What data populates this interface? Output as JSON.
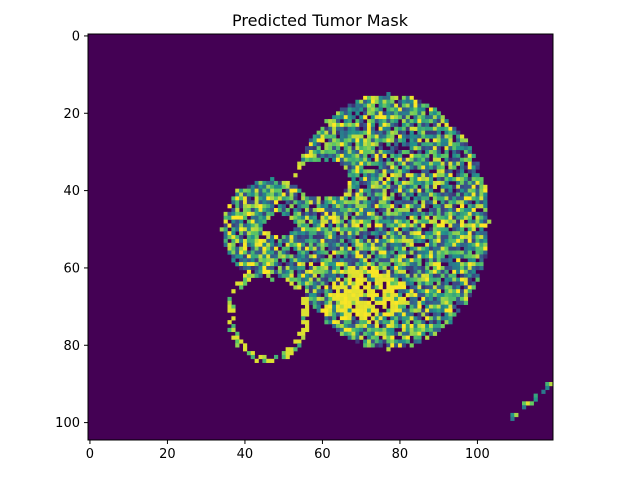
{
  "chart_data": {
    "type": "heatmap",
    "title": "Predicted Tumor Mask",
    "xlabel": "",
    "ylabel": "",
    "colormap": "viridis",
    "xlim": [
      -0.5,
      119.5
    ],
    "ylim": [
      104.5,
      -0.5
    ],
    "x_ticks": [
      0,
      20,
      40,
      60,
      80,
      100
    ],
    "y_ticks": [
      0,
      20,
      40,
      60,
      80,
      100
    ],
    "grid": false,
    "background_value": 0.0,
    "colors": {
      "background": "#440154",
      "low": "#3b528b",
      "mid": "#21918c",
      "high": "#5ec962",
      "max": "#fde725"
    },
    "regions": [
      {
        "name": "tumor-body",
        "shape": "ellipse",
        "cx": 77,
        "cy": 48,
        "rx": 26,
        "ry": 33,
        "mean_value": 0.6
      },
      {
        "name": "left-lobe",
        "shape": "ellipse",
        "cx": 47,
        "cy": 50,
        "rx": 13,
        "ry": 13,
        "mean_value": 0.55
      },
      {
        "name": "bright-core",
        "shape": "ellipse",
        "cx": 72,
        "cy": 67,
        "rx": 10,
        "ry": 7,
        "mean_value": 0.95
      },
      {
        "name": "hole-upper",
        "shape": "ellipse",
        "cx": 60,
        "cy": 37,
        "rx": 7,
        "ry": 5,
        "mean_value": 0.0
      },
      {
        "name": "hole-left",
        "shape": "ellipse",
        "cx": 49,
        "cy": 49,
        "rx": 4,
        "ry": 3,
        "mean_value": 0.0
      },
      {
        "name": "ring",
        "shape": "ring",
        "cx": 46,
        "cy": 72,
        "rx": 10,
        "ry": 12,
        "mean_value": 0.9
      },
      {
        "name": "ring-interior",
        "shape": "ellipse",
        "cx": 46,
        "cy": 72,
        "rx": 9,
        "ry": 11,
        "mean_value": 0.0
      },
      {
        "name": "corner-streak",
        "shape": "line",
        "x1": 108,
        "y1": 99,
        "x2": 119,
        "y2": 90,
        "mean_value": 0.7
      }
    ]
  }
}
